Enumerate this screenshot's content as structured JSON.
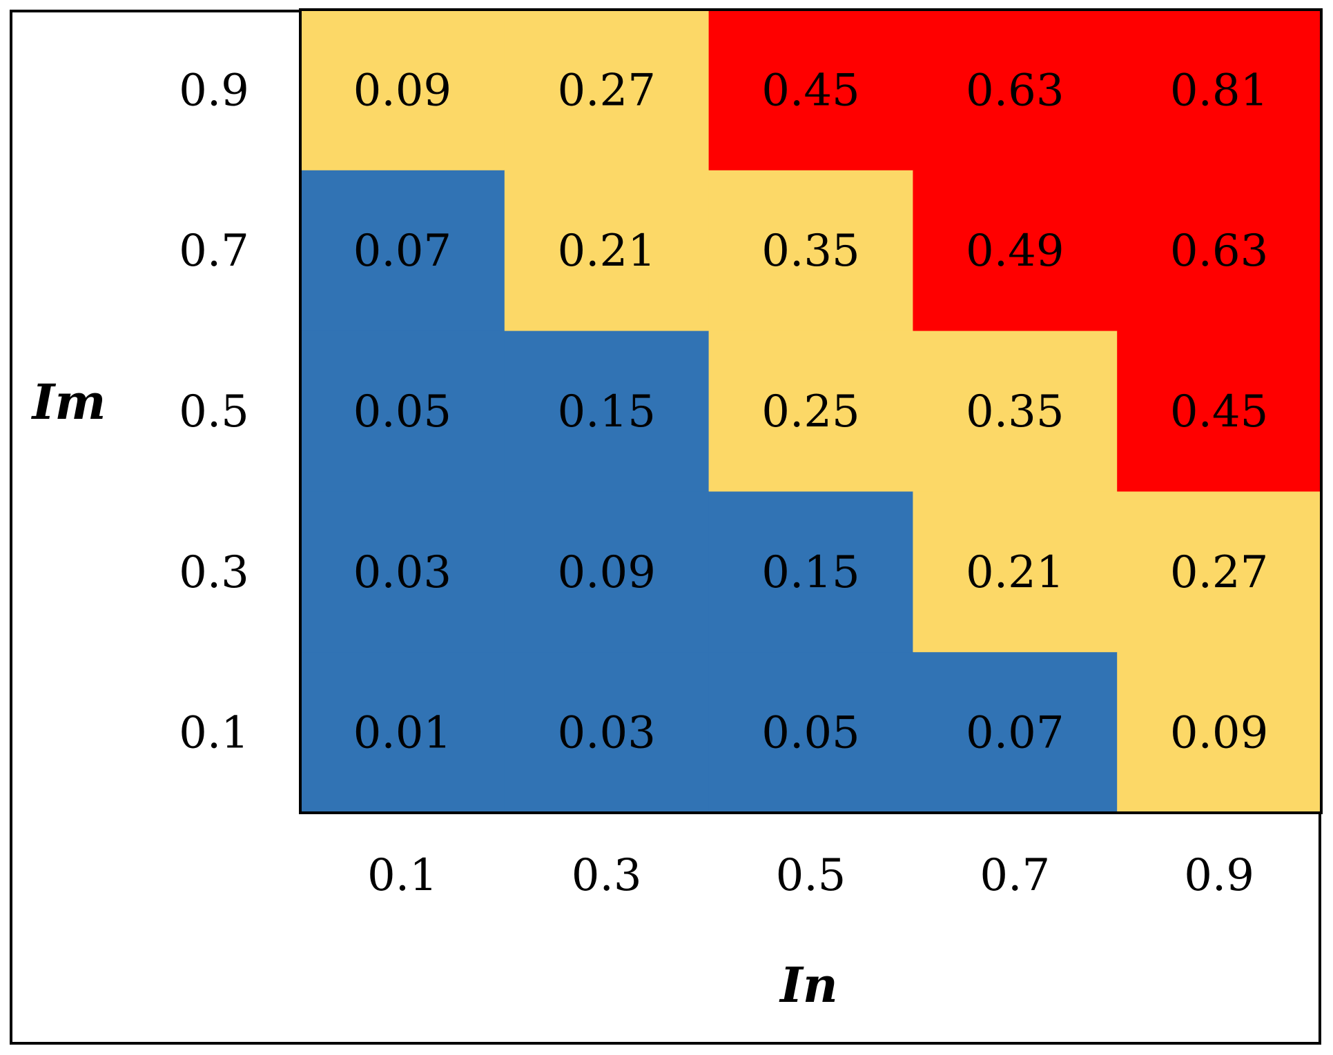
{
  "chart_data": {
    "type": "heatmap",
    "xlabel": "In",
    "ylabel": "Im",
    "x_ticks": [
      "0.1",
      "0.3",
      "0.5",
      "0.7",
      "0.9"
    ],
    "y_ticks": [
      "0.9",
      "0.7",
      "0.5",
      "0.3",
      "0.1"
    ],
    "cells": [
      [
        {
          "label": "0.09",
          "level": "medium"
        },
        {
          "label": "0.27",
          "level": "medium"
        },
        {
          "label": "0.45",
          "level": "high"
        },
        {
          "label": "0.63",
          "level": "high"
        },
        {
          "label": "0.81",
          "level": "high"
        }
      ],
      [
        {
          "label": "0.07",
          "level": "low"
        },
        {
          "label": "0.21",
          "level": "medium"
        },
        {
          "label": "0.35",
          "level": "medium"
        },
        {
          "label": "0.49",
          "level": "high"
        },
        {
          "label": "0.63",
          "level": "high"
        }
      ],
      [
        {
          "label": "0.05",
          "level": "low"
        },
        {
          "label": "0.15",
          "level": "low"
        },
        {
          "label": "0.25",
          "level": "medium"
        },
        {
          "label": "0.35",
          "level": "medium"
        },
        {
          "label": "0.45",
          "level": "high"
        }
      ],
      [
        {
          "label": "0.03",
          "level": "low"
        },
        {
          "label": "0.09",
          "level": "low"
        },
        {
          "label": "0.15",
          "level": "low"
        },
        {
          "label": "0.21",
          "level": "medium"
        },
        {
          "label": "0.27",
          "level": "medium"
        }
      ],
      [
        {
          "label": "0.01",
          "level": "low"
        },
        {
          "label": "0.03",
          "level": "low"
        },
        {
          "label": "0.05",
          "level": "low"
        },
        {
          "label": "0.07",
          "level": "low"
        },
        {
          "label": "0.09",
          "level": "medium"
        }
      ]
    ],
    "colors": {
      "low": "#3173b4",
      "medium": "#fcd867",
      "high": "#ff0000"
    },
    "grid": false,
    "legend": "none"
  }
}
